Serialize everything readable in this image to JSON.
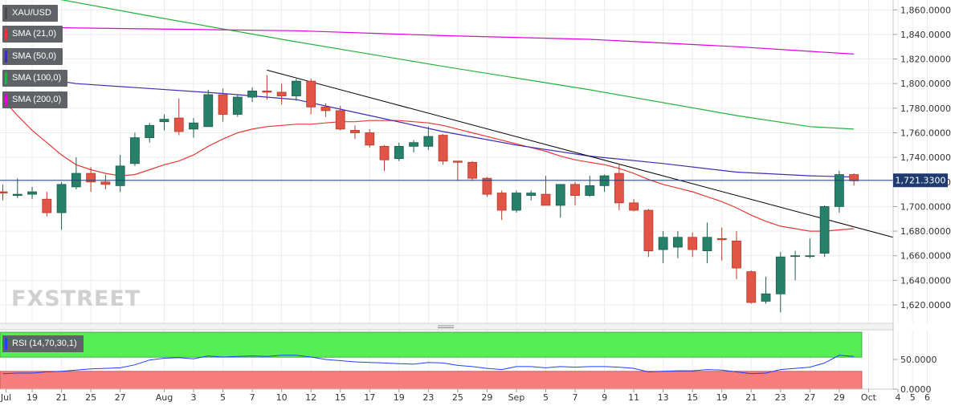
{
  "chart_data": [
    {
      "type": "candlestick",
      "symbol": "XAU/USD",
      "current_price": "1,721.3300",
      "ylim": [
        1605,
        1868
      ],
      "y_ticks": [
        "1,620.0000",
        "1,640.0000",
        "1,660.0000",
        "1,680.0000",
        "1,700.0000",
        "1,720.0000",
        "1,740.0000",
        "1,760.0000",
        "1,780.0000",
        "1,800.0000",
        "1,820.0000",
        "1,840.0000",
        "1,860.0000"
      ],
      "x_ticks": [
        "Jul",
        "19",
        "21",
        "25",
        "27",
        "Aug",
        "3",
        "5",
        "7",
        "10",
        "12",
        "15",
        "17",
        "19",
        "23",
        "25",
        "29",
        "Sep",
        "5",
        "7",
        "9",
        "11",
        "13",
        "15",
        "19",
        "21",
        "23",
        "27",
        "29",
        "Oct",
        "4",
        "5",
        "6"
      ],
      "candles": [
        {
          "o": 1712,
          "h": 1718,
          "l": 1705,
          "c": 1711
        },
        {
          "o": 1709,
          "h": 1723,
          "l": 1707,
          "c": 1710
        },
        {
          "o": 1710,
          "h": 1716,
          "l": 1706,
          "c": 1712
        },
        {
          "o": 1706,
          "h": 1712,
          "l": 1692,
          "c": 1695
        },
        {
          "o": 1695,
          "h": 1720,
          "l": 1681,
          "c": 1718
        },
        {
          "o": 1716,
          "h": 1740,
          "l": 1714,
          "c": 1727
        },
        {
          "o": 1727,
          "h": 1732,
          "l": 1712,
          "c": 1720
        },
        {
          "o": 1720,
          "h": 1726,
          "l": 1714,
          "c": 1718
        },
        {
          "o": 1717,
          "h": 1742,
          "l": 1712,
          "c": 1733
        },
        {
          "o": 1735,
          "h": 1760,
          "l": 1733,
          "c": 1756
        },
        {
          "o": 1756,
          "h": 1768,
          "l": 1752,
          "c": 1766
        },
        {
          "o": 1769,
          "h": 1775,
          "l": 1762,
          "c": 1771
        },
        {
          "o": 1772,
          "h": 1788,
          "l": 1758,
          "c": 1761
        },
        {
          "o": 1763,
          "h": 1772,
          "l": 1756,
          "c": 1768
        },
        {
          "o": 1765,
          "h": 1795,
          "l": 1765,
          "c": 1791
        },
        {
          "o": 1791,
          "h": 1796,
          "l": 1769,
          "c": 1775
        },
        {
          "o": 1775,
          "h": 1791,
          "l": 1773,
          "c": 1789
        },
        {
          "o": 1789,
          "h": 1797,
          "l": 1785,
          "c": 1794
        },
        {
          "o": 1794,
          "h": 1807,
          "l": 1787,
          "c": 1793
        },
        {
          "o": 1793,
          "h": 1800,
          "l": 1783,
          "c": 1790
        },
        {
          "o": 1790,
          "h": 1804,
          "l": 1786,
          "c": 1802
        },
        {
          "o": 1802,
          "h": 1804,
          "l": 1775,
          "c": 1781
        },
        {
          "o": 1781,
          "h": 1784,
          "l": 1773,
          "c": 1778
        },
        {
          "o": 1778,
          "h": 1782,
          "l": 1762,
          "c": 1763
        },
        {
          "o": 1762,
          "h": 1766,
          "l": 1755,
          "c": 1760
        },
        {
          "o": 1760,
          "h": 1763,
          "l": 1748,
          "c": 1750
        },
        {
          "o": 1749,
          "h": 1750,
          "l": 1729,
          "c": 1738
        },
        {
          "o": 1739,
          "h": 1752,
          "l": 1737,
          "c": 1749
        },
        {
          "o": 1749,
          "h": 1754,
          "l": 1744,
          "c": 1752
        },
        {
          "o": 1749,
          "h": 1765,
          "l": 1746,
          "c": 1757
        },
        {
          "o": 1758,
          "h": 1759,
          "l": 1734,
          "c": 1737
        },
        {
          "o": 1737,
          "h": 1737,
          "l": 1721,
          "c": 1736
        },
        {
          "o": 1736,
          "h": 1737,
          "l": 1721,
          "c": 1723
        },
        {
          "o": 1723,
          "h": 1724,
          "l": 1708,
          "c": 1710
        },
        {
          "o": 1711,
          "h": 1713,
          "l": 1689,
          "c": 1697
        },
        {
          "o": 1697,
          "h": 1713,
          "l": 1695,
          "c": 1711
        },
        {
          "o": 1709,
          "h": 1713,
          "l": 1705,
          "c": 1711
        },
        {
          "o": 1710,
          "h": 1725,
          "l": 1702,
          "c": 1701
        },
        {
          "o": 1701,
          "h": 1718,
          "l": 1691,
          "c": 1718
        },
        {
          "o": 1718,
          "h": 1720,
          "l": 1701,
          "c": 1709
        },
        {
          "o": 1709,
          "h": 1725,
          "l": 1708,
          "c": 1717
        },
        {
          "o": 1717,
          "h": 1726,
          "l": 1712,
          "c": 1725
        },
        {
          "o": 1727,
          "h": 1735,
          "l": 1697,
          "c": 1703
        },
        {
          "o": 1703,
          "h": 1706,
          "l": 1696,
          "c": 1697
        },
        {
          "o": 1697,
          "h": 1698,
          "l": 1659,
          "c": 1664
        },
        {
          "o": 1665,
          "h": 1680,
          "l": 1654,
          "c": 1675
        },
        {
          "o": 1667,
          "h": 1680,
          "l": 1658,
          "c": 1675
        },
        {
          "o": 1675,
          "h": 1679,
          "l": 1659,
          "c": 1665
        },
        {
          "o": 1664,
          "h": 1687,
          "l": 1654,
          "c": 1675
        },
        {
          "o": 1674,
          "h": 1683,
          "l": 1656,
          "c": 1673
        },
        {
          "o": 1672,
          "h": 1680,
          "l": 1641,
          "c": 1650
        },
        {
          "o": 1647,
          "h": 1648,
          "l": 1621,
          "c": 1622
        },
        {
          "o": 1623,
          "h": 1643,
          "l": 1621,
          "c": 1629
        },
        {
          "o": 1629,
          "h": 1663,
          "l": 1614,
          "c": 1659
        },
        {
          "o": 1660,
          "h": 1664,
          "l": 1640,
          "c": 1660
        },
        {
          "o": 1660,
          "h": 1674,
          "l": 1658,
          "c": 1660
        },
        {
          "o": 1662,
          "h": 1701,
          "l": 1659,
          "c": 1700
        },
        {
          "o": 1700,
          "h": 1729,
          "l": 1695,
          "c": 1726
        },
        {
          "o": 1726,
          "h": 1727,
          "l": 1717,
          "c": 1721
        }
      ],
      "series": [
        {
          "name": "SMA (21,0)",
          "color": "#e53935",
          "values": [
            [
              0,
              1787
            ],
            [
              1,
              1774
            ],
            [
              2,
              1762
            ],
            [
              3,
              1752
            ],
            [
              4,
              1742
            ],
            [
              5,
              1734
            ],
            [
              6,
              1730
            ],
            [
              7,
              1727
            ],
            [
              8,
              1725
            ],
            [
              9,
              1726
            ],
            [
              10,
              1730
            ],
            [
              11,
              1734
            ],
            [
              12,
              1737
            ],
            [
              13,
              1742
            ],
            [
              14,
              1749
            ],
            [
              15,
              1755
            ],
            [
              16,
              1760
            ],
            [
              17,
              1763
            ],
            [
              18,
              1765
            ],
            [
              19,
              1766
            ],
            [
              20,
              1767
            ],
            [
              21,
              1767
            ],
            [
              22,
              1768
            ],
            [
              23,
              1769
            ],
            [
              24,
              1769
            ],
            [
              25,
              1770
            ],
            [
              26,
              1770
            ],
            [
              27,
              1770
            ],
            [
              28,
              1769
            ],
            [
              29,
              1768
            ],
            [
              30,
              1766
            ],
            [
              31,
              1763
            ],
            [
              32,
              1760
            ],
            [
              33,
              1757
            ],
            [
              34,
              1754
            ],
            [
              35,
              1751
            ],
            [
              36,
              1748
            ],
            [
              37,
              1745
            ],
            [
              38,
              1741
            ],
            [
              39,
              1738
            ],
            [
              40,
              1736
            ],
            [
              41,
              1734
            ],
            [
              42,
              1731
            ],
            [
              43,
              1727
            ],
            [
              44,
              1722
            ],
            [
              45,
              1718
            ],
            [
              46,
              1715
            ],
            [
              47,
              1712
            ],
            [
              48,
              1708
            ],
            [
              49,
              1704
            ],
            [
              50,
              1699
            ],
            [
              51,
              1693
            ],
            [
              52,
              1688
            ],
            [
              53,
              1684
            ],
            [
              54,
              1682
            ],
            [
              55,
              1680
            ],
            [
              56,
              1680
            ],
            [
              57,
              1681
            ],
            [
              58,
              1682
            ]
          ]
        },
        {
          "name": "SMA (50,0)",
          "color": "#3f2bb8",
          "values": [
            [
              0,
              1809
            ],
            [
              5,
              1800
            ],
            [
              10,
              1796
            ],
            [
              15,
              1792
            ],
            [
              20,
              1787
            ],
            [
              25,
              1774
            ],
            [
              30,
              1761
            ],
            [
              35,
              1750
            ],
            [
              40,
              1741
            ],
            [
              45,
              1735
            ],
            [
              50,
              1728
            ],
            [
              55,
              1725
            ],
            [
              58,
              1724
            ]
          ]
        },
        {
          "name": "SMA (100,0)",
          "color": "#22b43a",
          "values": [
            [
              0,
              1877
            ],
            [
              10,
              1855
            ],
            [
              20,
              1834
            ],
            [
              30,
              1814
            ],
            [
              40,
              1795
            ],
            [
              50,
              1774
            ],
            [
              55,
              1765
            ],
            [
              58,
              1763
            ]
          ]
        },
        {
          "name": "SMA (200,0)",
          "color": "#e000e0",
          "values": [
            [
              0,
              1846
            ],
            [
              20,
              1843
            ],
            [
              30,
              1839
            ],
            [
              40,
              1836
            ],
            [
              50,
              1830
            ],
            [
              58,
              1824
            ]
          ]
        }
      ],
      "annotations": [
        {
          "type": "trendline",
          "color": "#000000",
          "from": [
            18,
            1811
          ],
          "to": [
            61,
            1675
          ]
        },
        {
          "type": "hline",
          "color": "#1f3a6e",
          "value": 1721.33
        }
      ],
      "legend": [
        "XAU/USD",
        "SMA (21,0)",
        "SMA (50,0)",
        "SMA (100,0)",
        "SMA (200,0)"
      ],
      "watermark": "FXSTREET"
    },
    {
      "type": "line",
      "title": "RSI (14,70,30,1)",
      "ylim": [
        0,
        100
      ],
      "overbought": 70,
      "oversold": 30,
      "y_ticks": [
        "50.0000",
        "0.0000"
      ],
      "series": [
        {
          "name": "RSI (14,70,30,1)",
          "color": "#1e40ff",
          "values": [
            [
              0,
              26
            ],
            [
              1,
              27
            ],
            [
              2,
              27
            ],
            [
              3,
              29
            ],
            [
              4,
              30
            ],
            [
              5,
              32
            ],
            [
              6,
              34
            ],
            [
              7,
              35
            ],
            [
              8,
              36
            ],
            [
              9,
              41
            ],
            [
              10,
              49
            ],
            [
              11,
              52
            ],
            [
              12,
              53
            ],
            [
              13,
              51
            ],
            [
              14,
              56
            ],
            [
              15,
              54
            ],
            [
              16,
              55
            ],
            [
              17,
              56
            ],
            [
              18,
              55
            ],
            [
              19,
              57
            ],
            [
              20,
              57
            ],
            [
              21,
              54
            ],
            [
              22,
              50
            ],
            [
              23,
              48
            ],
            [
              24,
              46
            ],
            [
              25,
              45
            ],
            [
              26,
              44
            ],
            [
              27,
              43
            ],
            [
              28,
              42
            ],
            [
              29,
              45
            ],
            [
              30,
              44
            ],
            [
              31,
              40
            ],
            [
              32,
              38
            ],
            [
              33,
              35
            ],
            [
              34,
              33
            ],
            [
              35,
              38
            ],
            [
              36,
              38
            ],
            [
              37,
              36
            ],
            [
              38,
              38
            ],
            [
              39,
              37
            ],
            [
              40,
              38
            ],
            [
              41,
              38
            ],
            [
              42,
              37
            ],
            [
              43,
              35
            ],
            [
              44,
              29
            ],
            [
              45,
              30
            ],
            [
              46,
              31
            ],
            [
              47,
              31
            ],
            [
              48,
              33
            ],
            [
              49,
              32
            ],
            [
              50,
              29
            ],
            [
              51,
              26
            ],
            [
              52,
              27
            ],
            [
              53,
              33
            ],
            [
              54,
              35
            ],
            [
              55,
              37
            ],
            [
              56,
              44
            ],
            [
              57,
              57
            ],
            [
              58,
              55
            ]
          ]
        }
      ]
    }
  ]
}
